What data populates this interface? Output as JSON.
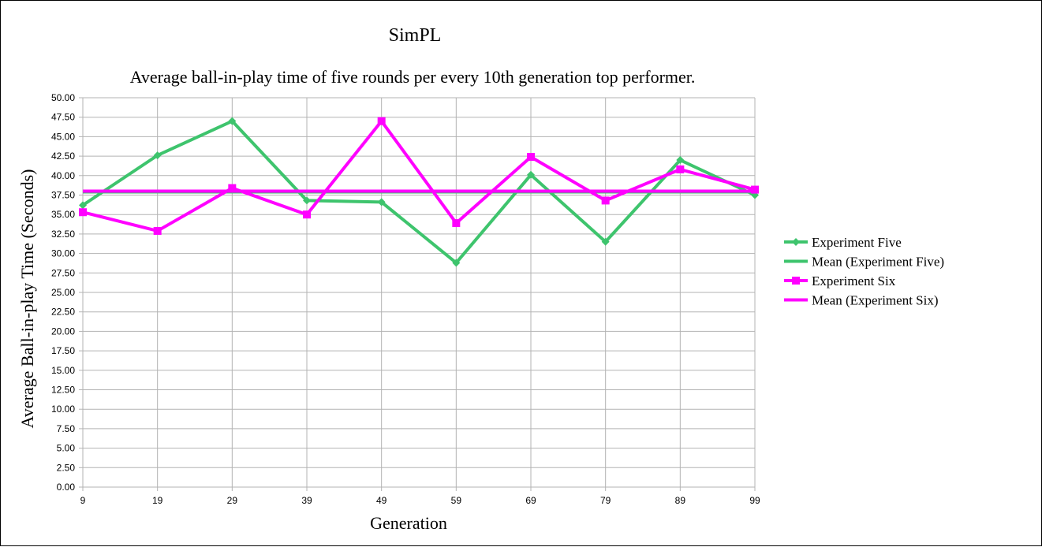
{
  "chart_data": {
    "type": "line",
    "title": "SimPL",
    "subtitle": "Average ball-in-play time of five rounds per every 10th generation top performer.",
    "xlabel": "Generation",
    "ylabel": "Average Ball-in-play Time (Seconds)",
    "ylim": [
      0,
      50
    ],
    "yticks": [
      "0.00",
      "2.50",
      "5.00",
      "7.50",
      "10.00",
      "12.50",
      "15.00",
      "17.50",
      "20.00",
      "22.50",
      "25.00",
      "27.50",
      "30.00",
      "32.50",
      "35.00",
      "37.50",
      "40.00",
      "42.50",
      "45.00",
      "47.50",
      "50.00"
    ],
    "categories": [
      "9",
      "19",
      "29",
      "39",
      "49",
      "59",
      "69",
      "79",
      "89",
      "99"
    ],
    "grid": true,
    "legend_position": "right",
    "series": [
      {
        "name": "Experiment Five",
        "color": "#3ec46d",
        "marker": "diamond",
        "values": [
          36.2,
          42.6,
          47.0,
          36.8,
          36.6,
          28.8,
          40.1,
          31.5,
          42.0,
          37.5
        ]
      },
      {
        "name": "Mean (Experiment Five)",
        "color": "#3ec46d",
        "marker": "none",
        "values": [
          37.9,
          37.9,
          37.9,
          37.9,
          37.9,
          37.9,
          37.9,
          37.9,
          37.9,
          37.9
        ]
      },
      {
        "name": "Experiment Six",
        "color": "#ff00ff",
        "marker": "square",
        "values": [
          35.3,
          32.9,
          38.4,
          35.0,
          47.0,
          33.9,
          42.4,
          36.8,
          40.8,
          38.2
        ]
      },
      {
        "name": "Mean (Experiment Six)",
        "color": "#ff00ff",
        "marker": "none",
        "values": [
          38.0,
          38.0,
          38.0,
          38.0,
          38.0,
          38.0,
          38.0,
          38.0,
          38.0,
          38.0
        ]
      }
    ]
  }
}
